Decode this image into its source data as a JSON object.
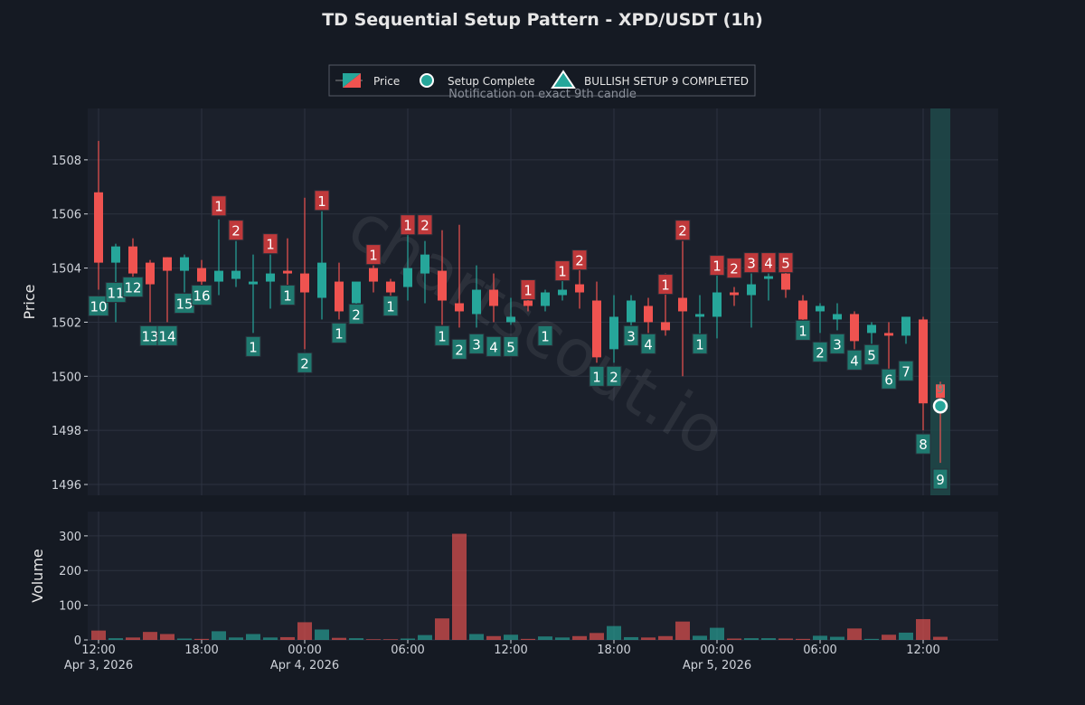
{
  "title": "TD Sequential Setup Pattern - XPD/USDT (1h)",
  "legend": {
    "price": "Price",
    "setup_complete": "Setup Complete",
    "bullish_setup": "BULLISH SETUP 9 COMPLETED",
    "notification": "Notification on exact 9th candle"
  },
  "watermark": "chartscout.io",
  "colors": {
    "background": "#151a23",
    "panel": "#1b202b",
    "grid": "#2c3240",
    "up": "#26a69a",
    "down": "#ef5350",
    "up_label_bg": "#1f7a70",
    "down_label_bg": "#c0393b",
    "highlight": "#1f4a4a",
    "text": "#e6e6e6",
    "axis_text": "#cfd3da"
  },
  "chart_data": {
    "type": "candlestick",
    "ylabel_price": "Price",
    "ylabel_volume": "Volume",
    "price_ylim": [
      1495.6,
      1509.9
    ],
    "price_ticks": [
      1496,
      1498,
      1500,
      1502,
      1504,
      1506,
      1508
    ],
    "volume_ylim": [
      0,
      370
    ],
    "volume_ticks": [
      0,
      100,
      200,
      300
    ],
    "x_ticks": [
      {
        "index": 0,
        "label": "12:00",
        "date": "Apr 3, 2026"
      },
      {
        "index": 6,
        "label": "18:00",
        "date": ""
      },
      {
        "index": 12,
        "label": "00:00",
        "date": "Apr 4, 2026"
      },
      {
        "index": 18,
        "label": "06:00",
        "date": ""
      },
      {
        "index": 24,
        "label": "12:00",
        "date": ""
      },
      {
        "index": 30,
        "label": "18:00",
        "date": ""
      },
      {
        "index": 36,
        "label": "00:00",
        "date": "Apr 5, 2026"
      },
      {
        "index": 42,
        "label": "06:00",
        "date": ""
      },
      {
        "index": 48,
        "label": "12:00",
        "date": ""
      }
    ],
    "x_start": "2026-04-03 12:00",
    "interval": "1h",
    "highlight_index": 49,
    "setup_complete_point": {
      "index": 49,
      "price": 1498.9
    },
    "highlight_label": "9",
    "candles": [
      {
        "o": 1506.8,
        "h": 1508.7,
        "l": 1503.2,
        "c": 1504.2,
        "v": 27,
        "td": "10",
        "td_side": "up",
        "td_price": 1502.6
      },
      {
        "o": 1504.2,
        "h": 1504.9,
        "l": 1502.0,
        "c": 1504.8,
        "v": 5,
        "td": "11",
        "td_side": "up",
        "td_price": 1503.1
      },
      {
        "o": 1504.8,
        "h": 1505.1,
        "l": 1503.1,
        "c": 1503.8,
        "v": 7,
        "td": "12",
        "td_side": "up",
        "td_price": 1503.3
      },
      {
        "o": 1504.2,
        "h": 1504.3,
        "l": 1502.0,
        "c": 1503.4,
        "v": 23,
        "td": "13",
        "td_side": "up",
        "td_price": 1501.5
      },
      {
        "o": 1504.4,
        "h": 1504.4,
        "l": 1502.0,
        "c": 1503.9,
        "v": 17,
        "td": "14",
        "td_side": "up",
        "td_price": 1501.5
      },
      {
        "o": 1503.9,
        "h": 1504.5,
        "l": 1503.1,
        "c": 1504.4,
        "v": 4,
        "td": "15",
        "td_side": "up",
        "td_price": 1502.7
      },
      {
        "o": 1504.0,
        "h": 1504.3,
        "l": 1503.1,
        "c": 1503.5,
        "v": 3,
        "td": "16",
        "td_side": "up",
        "td_price": 1503.0
      },
      {
        "o": 1503.5,
        "h": 1505.8,
        "l": 1503.0,
        "c": 1503.9,
        "v": 25,
        "td": "1",
        "td_side": "down",
        "td_price": 1506.3
      },
      {
        "o": 1503.6,
        "h": 1505.0,
        "l": 1503.3,
        "c": 1503.9,
        "v": 7,
        "td": "2",
        "td_side": "down",
        "td_price": 1505.4
      },
      {
        "o": 1503.4,
        "h": 1504.5,
        "l": 1501.6,
        "c": 1503.5,
        "v": 17,
        "td": "1",
        "td_side": "up",
        "td_price": 1501.1
      },
      {
        "o": 1503.5,
        "h": 1504.5,
        "l": 1502.5,
        "c": 1503.8,
        "v": 7,
        "td": "1",
        "td_side": "down",
        "td_price": 1504.9
      },
      {
        "o": 1503.9,
        "h": 1505.1,
        "l": 1503.0,
        "c": 1503.8,
        "v": 8,
        "td": "1",
        "td_side": "up",
        "td_price": 1503.0
      },
      {
        "o": 1503.8,
        "h": 1506.6,
        "l": 1501.0,
        "c": 1503.1,
        "v": 51,
        "td": "2",
        "td_side": "up",
        "td_price": 1500.5
      },
      {
        "o": 1502.9,
        "h": 1506.1,
        "l": 1502.1,
        "c": 1504.2,
        "v": 30,
        "td": "1",
        "td_side": "down",
        "td_price": 1506.5
      },
      {
        "o": 1503.5,
        "h": 1504.2,
        "l": 1502.1,
        "c": 1502.4,
        "v": 6,
        "td": "1",
        "td_side": "up",
        "td_price": 1501.6
      },
      {
        "o": 1502.7,
        "h": 1503.4,
        "l": 1502.3,
        "c": 1503.5,
        "v": 5,
        "td": "2",
        "td_side": "up",
        "td_price": 1502.3
      },
      {
        "o": 1504.0,
        "h": 1504.1,
        "l": 1503.1,
        "c": 1503.5,
        "v": 2,
        "td": "1",
        "td_side": "down",
        "td_price": 1504.5
      },
      {
        "o": 1503.5,
        "h": 1503.6,
        "l": 1502.9,
        "c": 1503.1,
        "v": 2,
        "td": "1",
        "td_side": "up",
        "td_price": 1502.6
      },
      {
        "o": 1503.3,
        "h": 1505.3,
        "l": 1502.8,
        "c": 1504.0,
        "v": 4,
        "td": "1",
        "td_side": "down",
        "td_price": 1505.6
      },
      {
        "o": 1503.8,
        "h": 1505.0,
        "l": 1502.7,
        "c": 1504.5,
        "v": 14,
        "td": "2",
        "td_side": "down",
        "td_price": 1505.6
      },
      {
        "o": 1503.9,
        "h": 1505.4,
        "l": 1501.9,
        "c": 1502.8,
        "v": 62,
        "td": "1",
        "td_side": "up",
        "td_price": 1501.5
      },
      {
        "o": 1502.7,
        "h": 1505.6,
        "l": 1501.8,
        "c": 1502.4,
        "v": 306,
        "td": "2",
        "td_side": "up",
        "td_price": 1501.0
      },
      {
        "o": 1502.3,
        "h": 1504.1,
        "l": 1501.8,
        "c": 1503.2,
        "v": 17,
        "td": "3",
        "td_side": "up",
        "td_price": 1501.2
      },
      {
        "o": 1503.2,
        "h": 1503.8,
        "l": 1502.0,
        "c": 1502.6,
        "v": 11,
        "td": "4",
        "td_side": "up",
        "td_price": 1501.1
      },
      {
        "o": 1502.0,
        "h": 1502.9,
        "l": 1501.9,
        "c": 1502.2,
        "v": 15,
        "td": "5",
        "td_side": "up",
        "td_price": 1501.1
      },
      {
        "o": 1502.8,
        "h": 1503.5,
        "l": 1502.4,
        "c": 1502.6,
        "v": 3,
        "td": "1",
        "td_side": "down",
        "td_price": 1503.2
      },
      {
        "o": 1502.6,
        "h": 1503.2,
        "l": 1502.4,
        "c": 1503.1,
        "v": 10,
        "td": "1",
        "td_side": "up",
        "td_price": 1501.5
      },
      {
        "o": 1503.0,
        "h": 1504.2,
        "l": 1502.8,
        "c": 1503.2,
        "v": 7,
        "td": "1",
        "td_side": "down",
        "td_price": 1503.9
      },
      {
        "o": 1503.4,
        "h": 1504.0,
        "l": 1502.5,
        "c": 1503.1,
        "v": 11,
        "td": "2",
        "td_side": "down",
        "td_price": 1504.3
      },
      {
        "o": 1502.8,
        "h": 1503.5,
        "l": 1500.5,
        "c": 1500.7,
        "v": 20,
        "td": "1",
        "td_side": "up",
        "td_price": 1500.0
      },
      {
        "o": 1501.0,
        "h": 1503.0,
        "l": 1500.5,
        "c": 1502.2,
        "v": 40,
        "td": "2",
        "td_side": "up",
        "td_price": 1500.0
      },
      {
        "o": 1502.0,
        "h": 1503.0,
        "l": 1501.5,
        "c": 1502.8,
        "v": 8,
        "td": "3",
        "td_side": "up",
        "td_price": 1501.5
      },
      {
        "o": 1502.6,
        "h": 1502.9,
        "l": 1501.6,
        "c": 1502.0,
        "v": 7,
        "td": "4",
        "td_side": "up",
        "td_price": 1501.2
      },
      {
        "o": 1502.0,
        "h": 1503.8,
        "l": 1501.5,
        "c": 1501.7,
        "v": 11,
        "td": "1",
        "td_side": "down",
        "td_price": 1503.4
      },
      {
        "o": 1502.9,
        "h": 1505.0,
        "l": 1500.0,
        "c": 1502.4,
        "v": 53,
        "td": "2",
        "td_side": "down",
        "td_price": 1505.4
      },
      {
        "o": 1502.2,
        "h": 1503.0,
        "l": 1501.0,
        "c": 1502.3,
        "v": 12,
        "td": "1",
        "td_side": "up",
        "td_price": 1501.2
      },
      {
        "o": 1502.2,
        "h": 1504.2,
        "l": 1501.4,
        "c": 1503.1,
        "v": 35,
        "td": "1",
        "td_side": "down",
        "td_price": 1504.1
      },
      {
        "o": 1503.1,
        "h": 1503.3,
        "l": 1502.6,
        "c": 1503.0,
        "v": 4,
        "td": "2",
        "td_side": "down",
        "td_price": 1504.0
      },
      {
        "o": 1503.0,
        "h": 1503.8,
        "l": 1501.8,
        "c": 1503.4,
        "v": 5,
        "td": "3",
        "td_side": "down",
        "td_price": 1504.2
      },
      {
        "o": 1503.6,
        "h": 1503.8,
        "l": 1502.8,
        "c": 1503.7,
        "v": 5,
        "td": "4",
        "td_side": "down",
        "td_price": 1504.2
      },
      {
        "o": 1503.8,
        "h": 1504.0,
        "l": 1502.9,
        "c": 1503.2,
        "v": 4,
        "td": "5",
        "td_side": "down",
        "td_price": 1504.2
      },
      {
        "o": 1502.8,
        "h": 1503.0,
        "l": 1501.7,
        "c": 1502.1,
        "v": 3,
        "td": "1",
        "td_side": "up",
        "td_price": 1501.7
      },
      {
        "o": 1502.4,
        "h": 1502.7,
        "l": 1501.6,
        "c": 1502.6,
        "v": 12,
        "td": "2",
        "td_side": "up",
        "td_price": 1500.9
      },
      {
        "o": 1502.1,
        "h": 1502.7,
        "l": 1501.7,
        "c": 1502.3,
        "v": 9,
        "td": "3",
        "td_side": "up",
        "td_price": 1501.2
      },
      {
        "o": 1502.3,
        "h": 1502.4,
        "l": 1501.0,
        "c": 1501.3,
        "v": 33,
        "td": "4",
        "td_side": "up",
        "td_price": 1500.6
      },
      {
        "o": 1501.6,
        "h": 1502.0,
        "l": 1501.2,
        "c": 1501.9,
        "v": 3,
        "td": "5",
        "td_side": "up",
        "td_price": 1500.8
      },
      {
        "o": 1501.6,
        "h": 1502.0,
        "l": 1500.2,
        "c": 1501.5,
        "v": 15,
        "td": "6",
        "td_side": "up",
        "td_price": 1499.9
      },
      {
        "o": 1501.5,
        "h": 1502.2,
        "l": 1501.2,
        "c": 1502.2,
        "v": 21,
        "td": "7",
        "td_side": "up",
        "td_price": 1500.2
      },
      {
        "o": 1502.1,
        "h": 1502.2,
        "l": 1498.0,
        "c": 1499.0,
        "v": 60,
        "td": "8",
        "td_side": "up",
        "td_price": 1497.5
      },
      {
        "o": 1499.7,
        "h": 1499.8,
        "l": 1496.8,
        "c": 1499.2,
        "v": 9,
        "td": "9",
        "td_side": "up",
        "td_price": 1496.2
      }
    ]
  }
}
